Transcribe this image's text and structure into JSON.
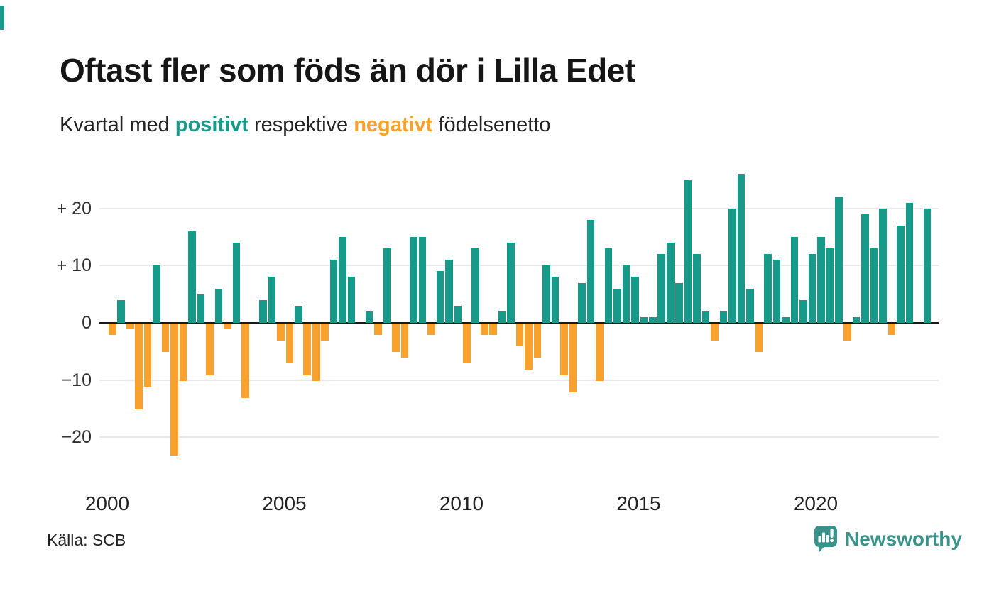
{
  "accent": {
    "top_left_mark_color": "#1a998a"
  },
  "header": {
    "title": "Oftast fler som föds än dör i Lilla Edet",
    "subtitle": {
      "part1": "Kvartal med ",
      "positive_word": "positivt",
      "part2": " respektive ",
      "negative_word": "negativt",
      "part3": " födelsenetto"
    }
  },
  "chart_data": {
    "type": "bar",
    "title": "Oftast fler som föds än dör i Lilla Edet",
    "subtitle": "Kvartal med positivt respektive negativt födelsenetto",
    "xlabel": "",
    "ylabel": "",
    "grid": "horizontal",
    "ylim": [
      -26,
      27
    ],
    "positive_color": "#189a8a",
    "negative_color": "#f8a12c",
    "categories": [
      "2000 K1",
      "2000 K2",
      "2000 K3",
      "2000 K4",
      "2001 K1",
      "2001 K2",
      "2001 K3",
      "2001 K4",
      "2002 K1",
      "2002 K2",
      "2002 K3",
      "2002 K4",
      "2003 K1",
      "2003 K2",
      "2003 K3",
      "2003 K4",
      "2004 K1",
      "2004 K2",
      "2004 K3",
      "2004 K4",
      "2005 K1",
      "2005 K2",
      "2005 K3",
      "2005 K4",
      "2006 K1",
      "2006 K2",
      "2006 K3",
      "2006 K4",
      "2007 K1",
      "2007 K2",
      "2007 K3",
      "2007 K4",
      "2008 K1",
      "2008 K2",
      "2008 K3",
      "2008 K4",
      "2009 K1",
      "2009 K2",
      "2009 K3",
      "2009 K4",
      "2010 K1",
      "2010 K2",
      "2010 K3",
      "2010 K4",
      "2011 K1",
      "2011 K2",
      "2011 K3",
      "2011 K4",
      "2012 K1",
      "2012 K2",
      "2012 K3",
      "2012 K4",
      "2013 K1",
      "2013 K2",
      "2013 K3",
      "2013 K4",
      "2014 K1",
      "2014 K2",
      "2014 K3",
      "2014 K4",
      "2015 K1",
      "2015 K2",
      "2015 K3",
      "2015 K4",
      "2016 K1",
      "2016 K2",
      "2016 K3",
      "2016 K4",
      "2017 K1",
      "2017 K2",
      "2017 K3",
      "2017 K4",
      "2018 K1",
      "2018 K2",
      "2018 K3",
      "2018 K4",
      "2019 K1",
      "2019 K2",
      "2019 K3",
      "2019 K4",
      "2020 K1",
      "2020 K2",
      "2020 K3",
      "2020 K4",
      "2021 K1",
      "2021 K2",
      "2021 K3",
      "2021 K4",
      "2022 K1",
      "2022 K2",
      "2022 K3",
      "2022 K4",
      "2023 K1"
    ],
    "values": [
      -2,
      4,
      -1,
      -15,
      -11,
      10,
      -5,
      -23,
      -10,
      16,
      5,
      -9,
      6,
      -1,
      14,
      -13,
      0,
      4,
      8,
      -3,
      -7,
      3,
      -9,
      -10,
      -3,
      11,
      15,
      8,
      0,
      2,
      -2,
      13,
      -5,
      -6,
      15,
      15,
      -2,
      9,
      11,
      3,
      -7,
      13,
      -2,
      -2,
      2,
      14,
      -4,
      -8,
      -6,
      10,
      8,
      -9,
      -12,
      7,
      18,
      -10,
      13,
      6,
      10,
      8,
      1,
      1,
      12,
      14,
      7,
      25,
      12,
      2,
      -3,
      2,
      20,
      26,
      6,
      -5,
      12,
      11,
      1,
      15,
      4,
      12,
      15,
      13,
      22,
      -3,
      1,
      19,
      13,
      20,
      -2,
      17,
      21,
      0,
      20
    ],
    "y_ticks": [
      {
        "label": "+ 20",
        "value": 20
      },
      {
        "label": "+ 10",
        "value": 10
      },
      {
        "label": "0",
        "value": 0
      },
      {
        "label": "−10",
        "value": -10
      },
      {
        "label": "−20",
        "value": -20
      }
    ],
    "x_ticks": [
      {
        "label": "2000",
        "index": 0
      },
      {
        "label": "2005",
        "index": 20
      },
      {
        "label": "2010",
        "index": 40
      },
      {
        "label": "2015",
        "index": 60
      },
      {
        "label": "2020",
        "index": 80
      }
    ]
  },
  "footer": {
    "source": "Källa: SCB",
    "brand": "Newsworthy",
    "brand_color": "#3a938b"
  }
}
